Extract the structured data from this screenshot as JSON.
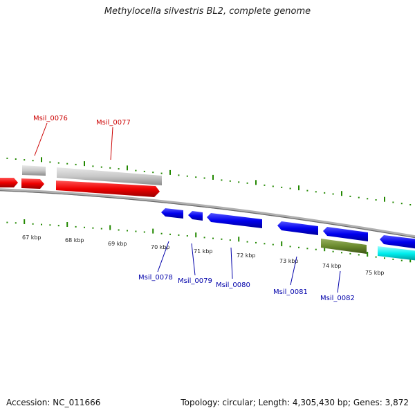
{
  "title": "Methylocella silvestris BL2, complete genome",
  "footer": {
    "accession": "Accession: NC_011666",
    "summary": "Topology: circular; Length: 4,305,430 bp; Genes: 3,872"
  },
  "colors": {
    "forward_label": "#cc0000",
    "reverse_label": "#0000aa",
    "tick": "#228800",
    "backbone": "#888888"
  },
  "scale_labels": [
    "67 kbp",
    "68 kbp",
    "69 kbp",
    "70 kbp",
    "71 kbp",
    "72 kbp",
    "73 kbp",
    "74 kbp",
    "75 kbp"
  ],
  "gene_labels": {
    "forward": [
      "Msil_0076",
      "Msil_0077"
    ],
    "reverse": [
      "Msil_0078",
      "Msil_0079",
      "Msil_0080",
      "Msil_0081",
      "Msil_0082"
    ]
  }
}
